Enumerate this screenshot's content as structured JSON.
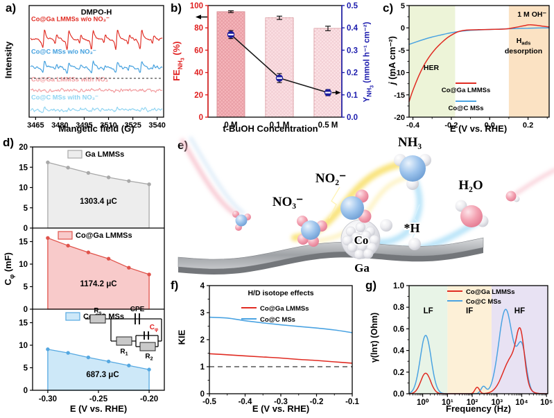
{
  "figure": {
    "background": "#ffffff"
  },
  "panel_letters": {
    "a": "a)",
    "b": "b)",
    "c": "c)",
    "d": "d)",
    "e": "e)",
    "f": "f)",
    "g": "g)"
  },
  "axis_titles": {
    "a_x": "Mangetic field (G)",
    "a_y": "Intensity",
    "b_x": "t-BuOH Concentration",
    "b_left": {
      "pre": "FE",
      "sub": "NH",
      "subsub": "3",
      "post": " (%)"
    },
    "b_right": {
      "pre": "Y",
      "sub": "NH",
      "subsub": "3",
      "post": " (mmol h⁻¹ cm⁻²)"
    },
    "c_x": "E (V vs. RHE)",
    "c_y": {
      "italic": "j",
      "post": " (mA cm⁻²)"
    },
    "d_x": "E (V vs. RHE)",
    "d_y": {
      "pre": "C",
      "sub": "φ",
      "post": " (mF)"
    },
    "f_x": "E (V vs. RHE)",
    "f_y": "KIE",
    "g_x": "Frequency (Hz)",
    "g_y": "γ(lnτ) (Ohm)"
  },
  "colors": {
    "red": "#e02b22",
    "blue": "#4aa3e2",
    "pink": "#f29b9e",
    "lightblue": "#8fd4f2",
    "axis_red": "#e01f1f",
    "navy": "#1b1bad",
    "c_green": "#edf4d8",
    "c_orange": "#fbe2c3",
    "g_green": "#e8f4e7",
    "g_orange": "#fdf0d7",
    "g_purple": "#e8e2f3"
  },
  "chart_data": [
    {
      "id": "a",
      "type": "line",
      "title": "DMPO-H",
      "xlabel": "Mangetic field (G)",
      "ylabel": "Intensity",
      "xlim": [
        3461,
        3544
      ],
      "xticks": [
        3465,
        3480,
        3495,
        3510,
        3525,
        3540
      ],
      "peaks_major_G": [
        3470,
        3485,
        3500,
        3515,
        3530
      ],
      "peaks_minor_G": [
        3477.5,
        3492.5,
        3507.5,
        3522.5,
        3537.5
      ],
      "separator_frac": 0.652,
      "series": [
        {
          "label": "Co@Ga LMMSs w/o NO₃⁻",
          "color": "#e02b22",
          "baseline": 0.3,
          "spike": 14,
          "minor": 6,
          "noise": 2.2,
          "label_dy": -26,
          "seed": 7
        },
        {
          "label": "Co@C MSs w/o NO₃⁻",
          "color": "#3f9ede",
          "baseline": 0.555,
          "spike": 8,
          "minor": 3.5,
          "noise": 2.4,
          "label_dy": -20,
          "seed": 13
        },
        {
          "label": "Co@Ga LMMSs with NO₃⁻",
          "color": "#f29b9e",
          "baseline": 0.76,
          "spike": 0,
          "minor": 0,
          "noise": 3.4,
          "label_dy": -13,
          "seed": 23
        },
        {
          "label": "Co@C MSs with NO₃⁻",
          "color": "#8fd4f2",
          "baseline": 0.935,
          "spike": 2.2,
          "minor": 1.2,
          "noise": 3.0,
          "label_dy": -15,
          "seed": 31
        }
      ]
    },
    {
      "id": "b",
      "type": "bar+line",
      "categories": [
        "0 M",
        "0.1 M",
        "0.5 M"
      ],
      "xlabel": "t-BuOH Concentration",
      "left_axis": {
        "label": "FE_NH3 (%)",
        "lim": [
          0,
          100
        ],
        "ticks": [
          0,
          20,
          40,
          60,
          80,
          100
        ],
        "color": "#e01f1f"
      },
      "right_axis": {
        "label": "Y_NH3 (mmol h-1 cm-2)",
        "lim": [
          0,
          0.5
        ],
        "ticks": [
          "0.0",
          "0.1",
          "0.2",
          "0.3",
          "0.4",
          "0.5"
        ],
        "color": "#1b1bad"
      },
      "bars": {
        "values": [
          94.5,
          89,
          79.5
        ],
        "errors": [
          0.8,
          1.5,
          2
        ],
        "fills": [
          "#f5b6bb",
          "#fbdfe3",
          "#fce3e6"
        ],
        "hatch": [
          "#e79aa2",
          "#f1ccd2",
          "#f1ccd2"
        ],
        "stroke": "#cf8087"
      },
      "line": {
        "values": [
          0.37,
          0.175,
          0.11
        ],
        "errors": [
          0.018,
          0.02,
          0.014
        ],
        "color": "#1a1a1a",
        "marker_color": "#1c1c9c"
      }
    },
    {
      "id": "c",
      "type": "line",
      "xlim": [
        -0.42,
        0.31
      ],
      "ylim": [
        -20,
        5
      ],
      "xtick_vals": [
        -0.4,
        -0.2,
        0.0,
        0.2
      ],
      "xtick_labels": [
        "-0.4",
        "-0.2",
        "0.0",
        "0.2"
      ],
      "yticks": [
        5,
        0,
        -5,
        -10,
        -15,
        -20
      ],
      "regions": [
        {
          "x0": -0.42,
          "x1": -0.18,
          "color": "#edf4d8"
        },
        {
          "x0": 0.1,
          "x1": 0.31,
          "color": "#fbe2c3"
        }
      ],
      "annotations": {
        "electrolyte": "1 M OH⁻",
        "her": "HER",
        "hads_pre": "H",
        "hads_sub": "ads",
        "hads_line2": "desorption"
      },
      "series": [
        {
          "name": "Co@Ga LMMSs",
          "color": "#e02b22",
          "points": [
            [
              -0.42,
              -16.5
            ],
            [
              -0.4,
              -14.0
            ],
            [
              -0.37,
              -10.8
            ],
            [
              -0.34,
              -8.2
            ],
            [
              -0.31,
              -6.2
            ],
            [
              -0.28,
              -4.6
            ],
            [
              -0.25,
              -3.3
            ],
            [
              -0.22,
              -2.2
            ],
            [
              -0.19,
              -1.4
            ],
            [
              -0.16,
              -0.8
            ],
            [
              -0.12,
              -0.5
            ],
            [
              -0.06,
              -0.4
            ],
            [
              0.0,
              -0.35
            ],
            [
              0.06,
              -0.3
            ],
            [
              0.1,
              -0.15
            ],
            [
              0.14,
              0.15
            ],
            [
              0.18,
              0.5
            ],
            [
              0.21,
              0.7
            ],
            [
              0.25,
              0.55
            ],
            [
              0.28,
              0.35
            ],
            [
              0.31,
              0.2
            ]
          ]
        },
        {
          "name": "Co@C MSs",
          "color": "#4aa3e2",
          "points": [
            [
              -0.42,
              -3.7
            ],
            [
              -0.38,
              -3.1
            ],
            [
              -0.34,
              -2.55
            ],
            [
              -0.3,
              -2.05
            ],
            [
              -0.26,
              -1.65
            ],
            [
              -0.22,
              -1.25
            ],
            [
              -0.18,
              -0.95
            ],
            [
              -0.14,
              -0.7
            ],
            [
              -0.1,
              -0.55
            ],
            [
              -0.05,
              -0.45
            ],
            [
              0.0,
              -0.35
            ],
            [
              0.05,
              -0.28
            ],
            [
              0.1,
              -0.2
            ],
            [
              0.15,
              -0.12
            ],
            [
              0.2,
              -0.07
            ],
            [
              0.25,
              -0.03
            ],
            [
              0.31,
              0.0
            ]
          ]
        }
      ]
    },
    {
      "id": "d",
      "type": "area",
      "x": [
        -0.3,
        -0.28,
        -0.26,
        -0.24,
        -0.22,
        -0.2
      ],
      "xlim": [
        -0.315,
        -0.185
      ],
      "xtick_vals": [
        -0.3,
        -0.25,
        -0.2
      ],
      "xtick_labels": [
        "-0.30",
        "-0.25",
        "-0.20"
      ],
      "subplots": [
        {
          "name": "Ga LMMSs",
          "charge": "1303.4 μC",
          "line": "#a8a8a8",
          "fill": "#ededed",
          "values": [
            16.2,
            14.9,
            13.6,
            12.5,
            11.6,
            10.8
          ],
          "ylim": [
            0,
            20
          ],
          "yticks": [
            0,
            5,
            10,
            15,
            20
          ]
        },
        {
          "name": "Co@Ga LMMSs",
          "charge": "1174.2 μC",
          "line": "#e0534b",
          "fill": "#f8caca",
          "values": [
            15.8,
            14.1,
            12.6,
            11.2,
            9.2,
            7.7
          ],
          "ylim": [
            0,
            18
          ],
          "yticks": [
            0,
            5,
            10,
            15
          ]
        },
        {
          "name": "Co@C MSs",
          "charge": "687.3 μC",
          "line": "#55a8e1",
          "fill": "#cde8f8",
          "values": [
            9.1,
            8.3,
            7.3,
            6.4,
            5.5,
            4.6
          ],
          "ylim": [
            0,
            18
          ],
          "yticks": [
            0,
            5,
            10,
            15
          ]
        }
      ],
      "circuit": {
        "rs_pre": "R",
        "rs_sub": "s",
        "cpe": "CPE",
        "cphi_pre": "C",
        "cphi_sub": "φ",
        "cphi_color": "#e01f1f",
        "r1_pre": "R",
        "r1_sub": "1",
        "r2_pre": "R",
        "r2_sub": "2"
      }
    },
    {
      "id": "f",
      "type": "line",
      "title": "H/D isotope effects",
      "xlim": [
        -0.5,
        -0.1
      ],
      "ylim": [
        0,
        4
      ],
      "xtick_vals": [
        -0.5,
        -0.4,
        -0.3,
        -0.2,
        -0.1
      ],
      "xtick_labels": [
        "-0.5",
        "-0.4",
        "-0.3",
        "-0.2",
        "-0.1"
      ],
      "yticks": [
        0,
        1,
        2,
        3,
        4
      ],
      "dashed_y": 1,
      "x": [
        -0.5,
        -0.45,
        -0.4,
        -0.35,
        -0.3,
        -0.25,
        -0.2,
        -0.15,
        -0.1
      ],
      "series": [
        {
          "name": "Co@Ga LMMSs",
          "color": "#e02b22",
          "values": [
            1.48,
            1.44,
            1.4,
            1.36,
            1.32,
            1.27,
            1.23,
            1.18,
            1.13
          ]
        },
        {
          "name": "Co@C MSs",
          "color": "#4aa3e2",
          "values": [
            2.83,
            2.8,
            2.7,
            2.62,
            2.55,
            2.49,
            2.43,
            2.36,
            2.26
          ]
        }
      ]
    },
    {
      "id": "g",
      "type": "line",
      "xlim_log": [
        -0.55,
        5.05
      ],
      "ylim": [
        0,
        1.0
      ],
      "xtick_vals": [
        0,
        1,
        2,
        3,
        4,
        5
      ],
      "xtick_labels": [
        "10⁰",
        "10¹",
        "10²",
        "10³",
        "10⁴",
        "10⁵"
      ],
      "ytick_labels": [
        "0.0",
        "0.2",
        "0.4",
        "0.6",
        "0.8",
        "1.0"
      ],
      "regions": [
        {
          "label": "LF",
          "t0": -0.55,
          "t1": 1.0,
          "color": "#e8f4e7"
        },
        {
          "label": "IF",
          "t0": 1.0,
          "t1": 2.78,
          "color": "#fdf0d7"
        },
        {
          "label": "HF",
          "t0": 2.78,
          "t1": 5.05,
          "color": "#e8e2f3"
        }
      ],
      "series": [
        {
          "name": "Co@Ga LMMSs",
          "color": "#e02b22",
          "gaussians": [
            {
              "c": 0.12,
              "w": 0.2,
              "h": 0.19
            },
            {
              "c": 2.2,
              "w": 0.09,
              "h": 0.06
            },
            {
              "c": 3.6,
              "w": 0.35,
              "h": 0.33
            },
            {
              "c": 3.95,
              "w": 0.16,
              "h": 0.4
            }
          ]
        },
        {
          "name": "Co@C MSs",
          "color": "#4aa3e2",
          "gaussians": [
            {
              "c": 0.12,
              "w": 0.22,
              "h": 0.54
            },
            {
              "c": 2.45,
              "w": 0.1,
              "h": 0.065
            },
            {
              "c": 3.35,
              "w": 0.28,
              "h": 0.78
            },
            {
              "c": 4.0,
              "w": 0.18,
              "h": 0.42
            }
          ]
        }
      ]
    }
  ],
  "scheme": {
    "labels": {
      "no3": "NO₃⁻",
      "no2": "NO₂⁻",
      "nh3": "NH₃",
      "h2o": "H₂O",
      "hstar": "*H",
      "co": "Co",
      "ga": "Ga"
    }
  }
}
